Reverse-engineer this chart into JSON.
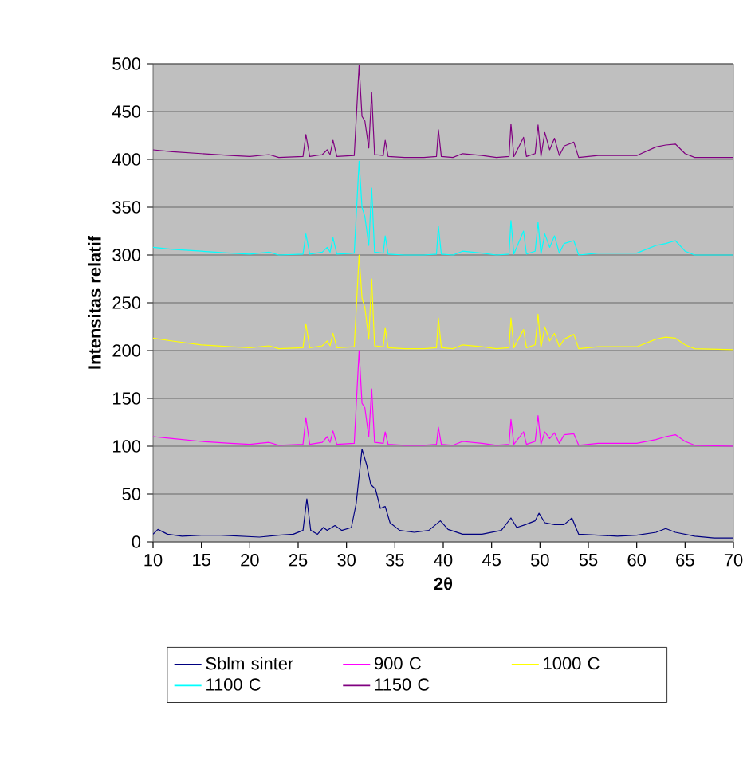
{
  "chart_data": {
    "type": "line",
    "xlabel": "2θ",
    "ylabel": "Intensitas relatif",
    "xlim": [
      10,
      70
    ],
    "xticks": [
      10,
      15,
      20,
      25,
      30,
      35,
      40,
      45,
      50,
      55,
      60,
      65,
      70
    ],
    "ylim": [
      0,
      500
    ],
    "yticks": [
      0,
      50,
      100,
      150,
      200,
      250,
      300,
      350,
      400,
      450,
      500
    ],
    "grid": "y",
    "legend": "bottom",
    "marker": "none",
    "line_style": "solid",
    "series": [
      {
        "name": "Sblm sinter",
        "color": "#000080",
        "x": [
          10,
          10.5,
          11.5,
          13,
          15,
          17,
          19,
          21,
          23,
          24.5,
          25.5,
          25.9,
          26.3,
          27,
          27.6,
          28,
          28.8,
          29.5,
          30.5,
          31,
          31.6,
          32.1,
          32.5,
          33,
          33.5,
          34,
          34.5,
          35.5,
          37,
          38.5,
          39.7,
          40.5,
          42,
          44,
          46,
          47,
          47.6,
          48.5,
          49.5,
          49.9,
          50.5,
          51.5,
          52.5,
          53.3,
          54,
          56,
          58,
          60,
          62,
          63,
          64,
          66,
          68,
          70
        ],
        "values": [
          8,
          13,
          8,
          6,
          7,
          7,
          6,
          5,
          7,
          8,
          12,
          45,
          12,
          8,
          15,
          12,
          17,
          12,
          15,
          40,
          97,
          80,
          60,
          55,
          35,
          37,
          20,
          12,
          10,
          12,
          22,
          13,
          8,
          8,
          12,
          25,
          15,
          18,
          22,
          30,
          20,
          18,
          18,
          25,
          8,
          7,
          6,
          7,
          10,
          14,
          10,
          6,
          4,
          4
        ]
      },
      {
        "name": "900 C",
        "color": "#ff00ff",
        "x": [
          10,
          12,
          15,
          18,
          20,
          22,
          23,
          25.5,
          25.8,
          26.2,
          27.5,
          28,
          28.3,
          28.6,
          29,
          30.8,
          31.3,
          31.6,
          31.9,
          32.3,
          32.6,
          32.9,
          33.8,
          34,
          34.3,
          36,
          38,
          39.3,
          39.5,
          39.8,
          41,
          42,
          44,
          45.5,
          46.8,
          47,
          47.3,
          48.3,
          48.6,
          49.5,
          49.8,
          50.1,
          50.5,
          51,
          51.5,
          52,
          52.5,
          53.5,
          54,
          56,
          58,
          60,
          62,
          63,
          64,
          65,
          66,
          70
        ],
        "values": [
          110,
          108,
          105,
          103,
          102,
          104,
          101,
          102,
          130,
          102,
          104,
          110,
          104,
          116,
          102,
          103,
          200,
          145,
          140,
          110,
          160,
          104,
          103,
          115,
          102,
          101,
          101,
          102,
          120,
          102,
          101,
          105,
          103,
          101,
          102,
          128,
          102,
          115,
          102,
          105,
          132,
          102,
          115,
          108,
          114,
          103,
          112,
          113,
          101,
          103,
          103,
          103,
          107,
          110,
          112,
          105,
          101,
          100
        ]
      },
      {
        "name": "1000 C",
        "color": "#ffff00",
        "x": [
          10,
          12,
          15,
          18,
          20,
          22,
          23,
          25.5,
          25.8,
          26.2,
          27.5,
          28,
          28.3,
          28.6,
          29,
          30.8,
          31.3,
          31.6,
          31.9,
          32.3,
          32.6,
          32.9,
          33.8,
          34,
          34.3,
          36,
          38,
          39.3,
          39.5,
          39.8,
          41,
          42,
          44,
          45.5,
          46.8,
          47,
          47.3,
          48.3,
          48.6,
          49.5,
          49.8,
          50.1,
          50.5,
          51,
          51.5,
          52,
          52.5,
          53.5,
          54,
          56,
          58,
          60,
          62,
          63,
          64,
          65,
          66,
          70
        ],
        "values": [
          213,
          210,
          206,
          204,
          203,
          205,
          202,
          203,
          228,
          203,
          205,
          210,
          205,
          218,
          203,
          204,
          300,
          255,
          245,
          212,
          275,
          205,
          204,
          224,
          203,
          202,
          202,
          203,
          234,
          203,
          202,
          206,
          204,
          202,
          203,
          234,
          203,
          222,
          203,
          206,
          238,
          203,
          225,
          210,
          218,
          204,
          212,
          217,
          202,
          204,
          204,
          204,
          212,
          214,
          213,
          206,
          202,
          201
        ]
      },
      {
        "name": "1100 C",
        "color": "#00ffff",
        "x": [
          10,
          12,
          15,
          18,
          20,
          22,
          23,
          25.5,
          25.8,
          26.2,
          27.5,
          28,
          28.3,
          28.6,
          29,
          30.8,
          31.3,
          31.6,
          31.9,
          32.3,
          32.6,
          32.9,
          33.8,
          34,
          34.3,
          36,
          38,
          39.3,
          39.5,
          39.8,
          41,
          42,
          44,
          45.5,
          46.8,
          47,
          47.3,
          48.3,
          48.6,
          49.5,
          49.8,
          50.1,
          50.5,
          51,
          51.5,
          52,
          52.5,
          53.5,
          54,
          56,
          58,
          60,
          62,
          63,
          64,
          65,
          66,
          70
        ],
        "values": [
          308,
          306,
          304,
          302,
          301,
          303,
          300,
          301,
          322,
          301,
          303,
          308,
          303,
          318,
          301,
          302,
          398,
          350,
          340,
          310,
          370,
          303,
          302,
          320,
          301,
          300,
          300,
          301,
          330,
          301,
          300,
          304,
          302,
          300,
          301,
          336,
          301,
          325,
          301,
          304,
          334,
          301,
          322,
          308,
          320,
          302,
          312,
          315,
          300,
          302,
          302,
          302,
          310,
          312,
          315,
          304,
          300,
          300
        ]
      },
      {
        "name": "1150 C",
        "color": "#800080",
        "x": [
          10,
          12,
          15,
          18,
          20,
          22,
          23,
          25.5,
          25.8,
          26.2,
          27.5,
          28,
          28.3,
          28.6,
          29,
          30.8,
          31.3,
          31.6,
          31.9,
          32.3,
          32.6,
          32.9,
          33.8,
          34,
          34.3,
          36,
          38,
          39.3,
          39.5,
          39.8,
          41,
          42,
          44,
          45.5,
          46.8,
          47,
          47.3,
          48.3,
          48.6,
          49.5,
          49.8,
          50.1,
          50.5,
          51,
          51.5,
          52,
          52.5,
          53.5,
          54,
          56,
          58,
          60,
          62,
          63,
          64,
          65,
          66,
          70
        ],
        "values": [
          410,
          408,
          406,
          404,
          403,
          405,
          402,
          403,
          426,
          403,
          405,
          410,
          405,
          420,
          403,
          404,
          498,
          445,
          440,
          412,
          470,
          405,
          404,
          420,
          403,
          402,
          402,
          403,
          431,
          403,
          402,
          406,
          404,
          402,
          403,
          437,
          403,
          423,
          403,
          406,
          436,
          403,
          428,
          410,
          422,
          404,
          414,
          418,
          402,
          404,
          404,
          404,
          413,
          415,
          416,
          406,
          402,
          402
        ]
      }
    ]
  }
}
